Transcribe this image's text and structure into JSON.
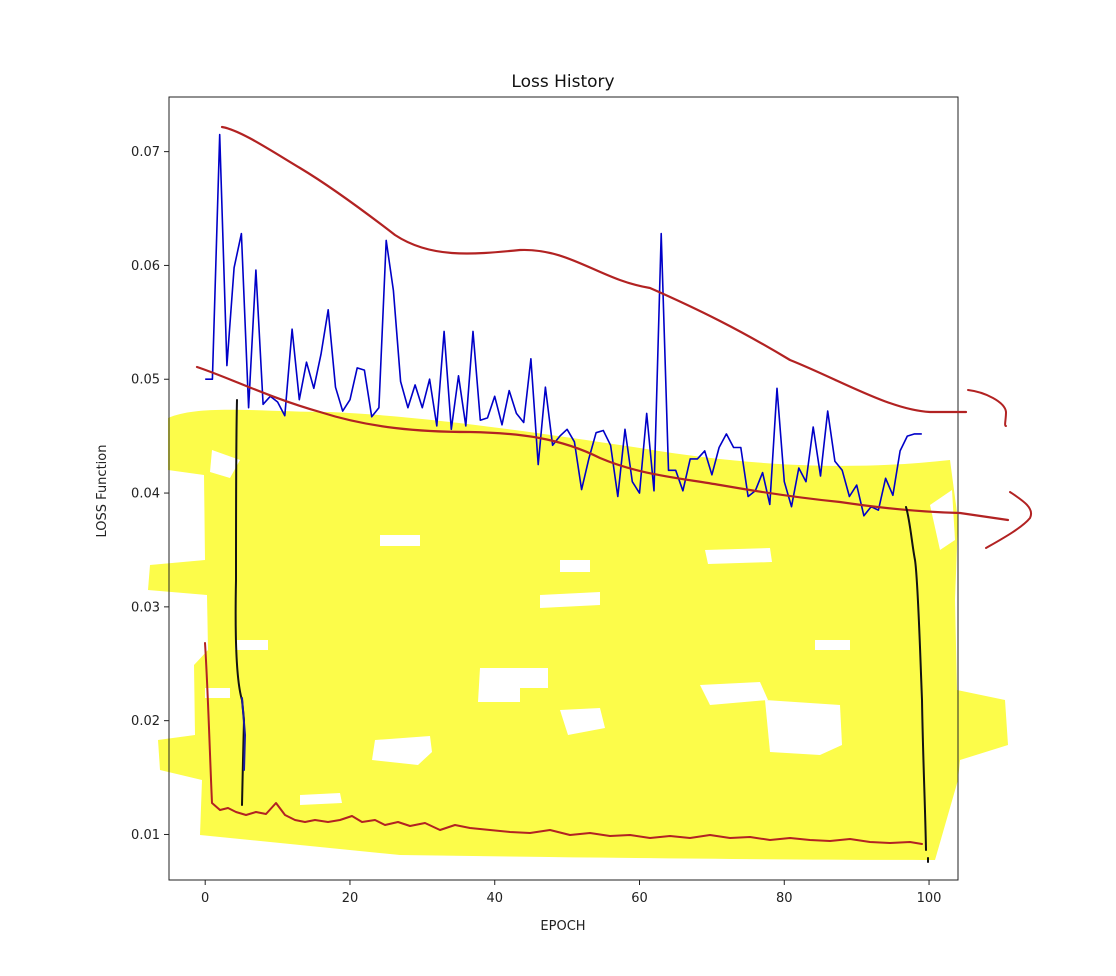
{
  "chart_data": {
    "type": "line",
    "title": "Loss History",
    "xlabel": "EPOCH",
    "ylabel": "LOSS Function",
    "xlim": [
      -5,
      104
    ],
    "ylim": [
      0.006,
      0.0748
    ],
    "xticks": [
      0,
      20,
      40,
      60,
      80,
      100
    ],
    "yticks": [
      0.01,
      0.02,
      0.03,
      0.04,
      0.05,
      0.06,
      0.07
    ],
    "ytick_labels": [
      "0.01",
      "0.02",
      "0.03",
      "0.04",
      "0.05",
      "0.06",
      "0.07"
    ],
    "grid": false,
    "series": [
      {
        "color": "#0000c8",
        "x": [
          0,
          1,
          2,
          3,
          4,
          5,
          6,
          7,
          8,
          9,
          10,
          11,
          12,
          13,
          14,
          15,
          16,
          17,
          18,
          19,
          20,
          21,
          22,
          23,
          24,
          25,
          26,
          27,
          28,
          29,
          30,
          31,
          32,
          33,
          34,
          35,
          36,
          37,
          38,
          39,
          40,
          41,
          42,
          43,
          44,
          45,
          46,
          47,
          48,
          49,
          50,
          51,
          52,
          53,
          54,
          55,
          56,
          57,
          58,
          59,
          60,
          61,
          62,
          63,
          64,
          65,
          66,
          67,
          68,
          69,
          70,
          71,
          72,
          73,
          74,
          75,
          76,
          77,
          78,
          79,
          80,
          81,
          82,
          83,
          84,
          85,
          86,
          87,
          88,
          89,
          90,
          91,
          92,
          93,
          94,
          95,
          96,
          97,
          98,
          99
        ],
        "y": [
          0.05,
          0.05,
          0.0715,
          0.0512,
          0.0598,
          0.0628,
          0.0475,
          0.0596,
          0.0478,
          0.0485,
          0.048,
          0.0468,
          0.0544,
          0.0482,
          0.0515,
          0.0492,
          0.0522,
          0.0561,
          0.0493,
          0.0472,
          0.0482,
          0.051,
          0.0508,
          0.0467,
          0.0475,
          0.0622,
          0.0578,
          0.0498,
          0.0475,
          0.0495,
          0.0475,
          0.05,
          0.0459,
          0.0542,
          0.0456,
          0.0503,
          0.0459,
          0.0542,
          0.0464,
          0.0466,
          0.0485,
          0.046,
          0.049,
          0.047,
          0.0462,
          0.0518,
          0.0425,
          0.0493,
          0.0442,
          0.045,
          0.0456,
          0.0445,
          0.0403,
          0.043,
          0.0453,
          0.0455,
          0.0442,
          0.0397,
          0.0456,
          0.041,
          0.04,
          0.047,
          0.0402,
          0.0628,
          0.042,
          0.042,
          0.0402,
          0.043,
          0.043,
          0.0437,
          0.0416,
          0.044,
          0.0452,
          0.044,
          0.044,
          0.0397,
          0.0402,
          0.0418,
          0.039,
          0.0492,
          0.041,
          0.0388,
          0.0422,
          0.041,
          0.0458,
          0.0415,
          0.0472,
          0.0428,
          0.042,
          0.0397,
          0.0407,
          0.038,
          0.0388,
          0.0385,
          0.0413,
          0.0398,
          0.0437,
          0.045,
          0.0452,
          0.0452
        ]
      }
    ]
  }
}
